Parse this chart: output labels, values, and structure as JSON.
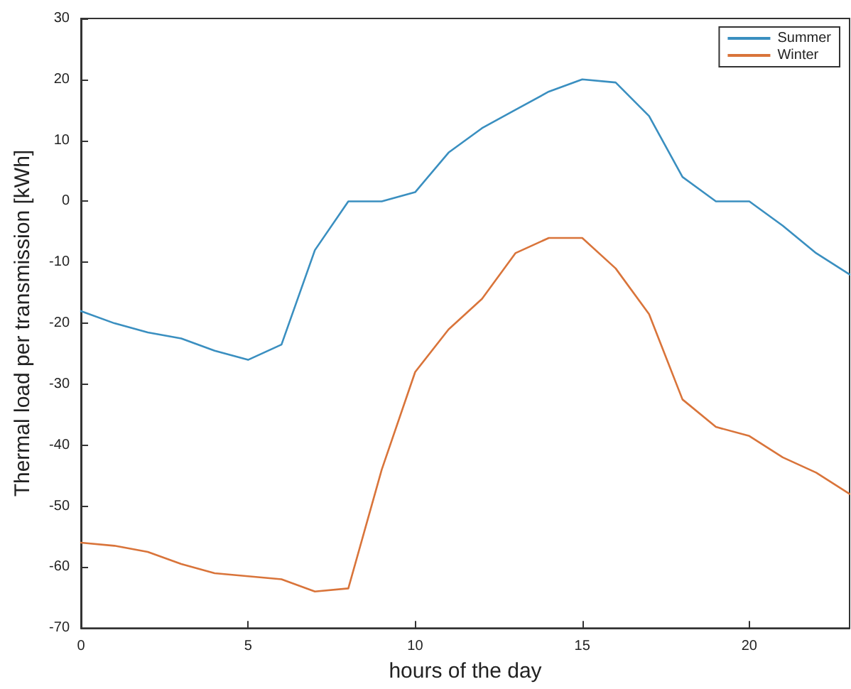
{
  "chart_data": {
    "type": "line",
    "xlabel": "hours of the day",
    "ylabel": "Thermal load per transmission [kWh]",
    "x": [
      0,
      1,
      2,
      3,
      4,
      5,
      6,
      7,
      8,
      9,
      10,
      11,
      12,
      13,
      14,
      15,
      16,
      17,
      18,
      19,
      20,
      21,
      22,
      23
    ],
    "series": [
      {
        "name": "Summer",
        "color": "#3a8fc0",
        "values": [
          -18,
          -20,
          -21.5,
          -22.5,
          -24.5,
          -26,
          -23.5,
          -8,
          0,
          0,
          1.5,
          8,
          12,
          15,
          18,
          20,
          19.5,
          14,
          4,
          0,
          0,
          -4,
          -8.5,
          -12
        ]
      },
      {
        "name": "Winter",
        "color": "#d9743a",
        "values": [
          -56,
          -56.5,
          -57.5,
          -59.5,
          -61,
          -61.5,
          -62,
          -64,
          -63.5,
          -44,
          -28,
          -21,
          -16,
          -8.5,
          -6,
          -6,
          -11,
          -18.5,
          -32.5,
          -37,
          -38.5,
          -42,
          -44.5,
          -48
        ]
      }
    ],
    "xlim": [
      0,
      23
    ],
    "xticks": [
      0,
      5,
      10,
      15,
      20
    ],
    "ylim": [
      -70,
      30
    ],
    "yticks": [
      -70,
      -60,
      -50,
      -40,
      -30,
      -20,
      -10,
      0,
      10,
      20,
      30
    ],
    "grid": false,
    "legend": "top right",
    "marker": "none",
    "line_style": "solid"
  }
}
